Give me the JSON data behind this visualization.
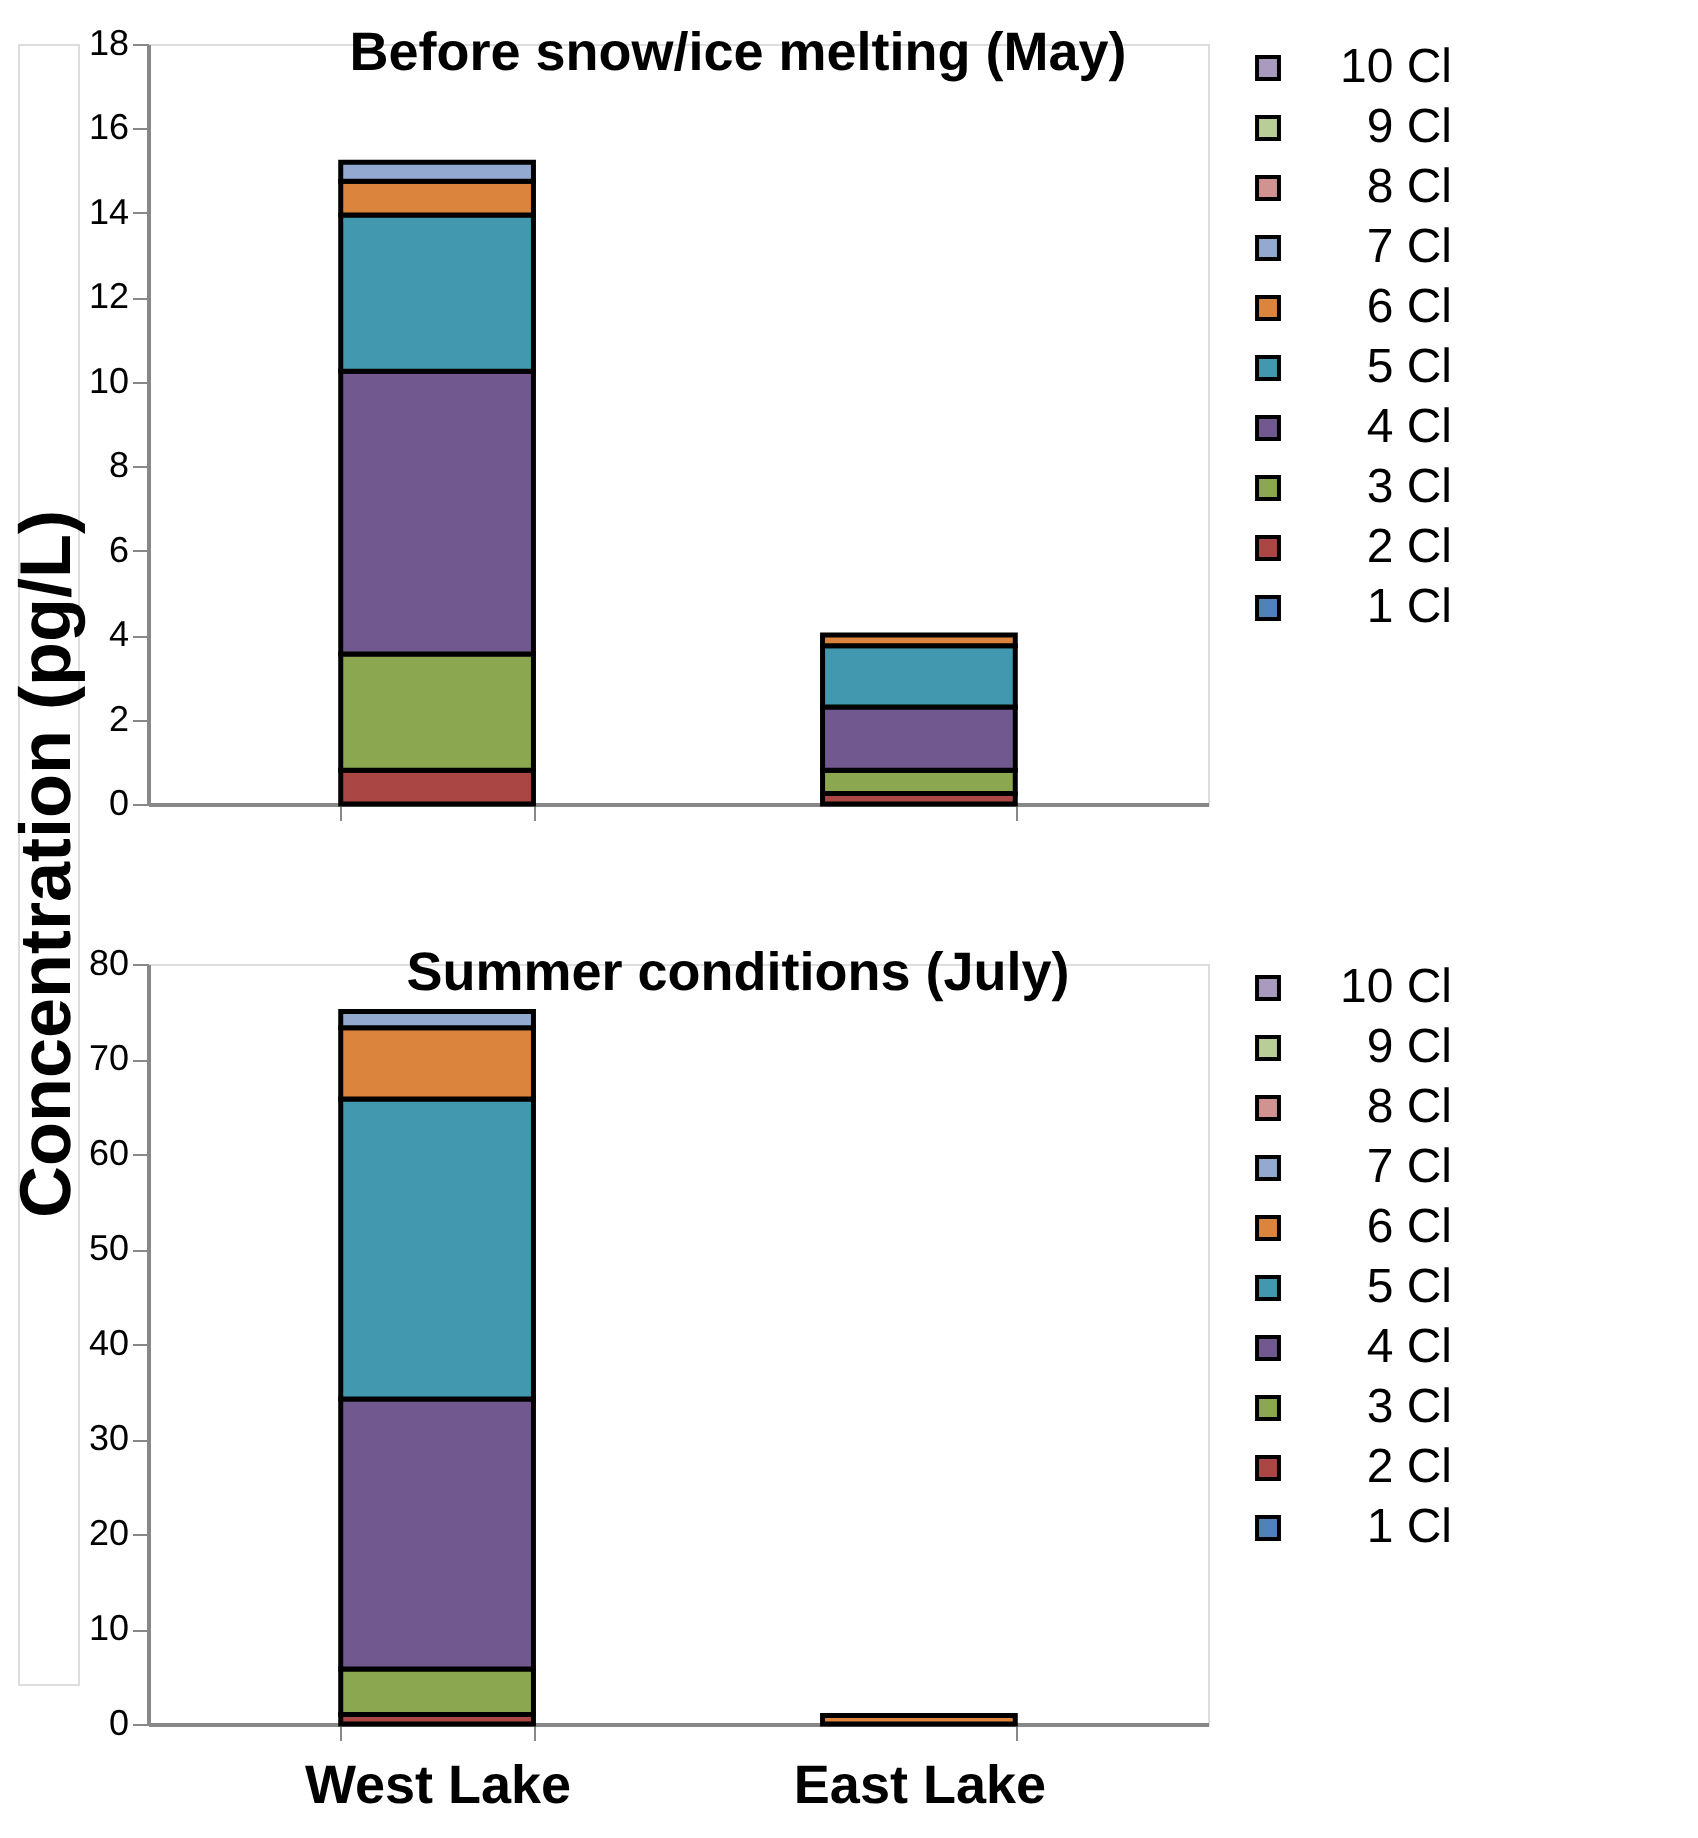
{
  "chart_data": [
    {
      "type": "bar",
      "stacked": true,
      "title": "Before snow/ice melting (May)",
      "ylabel": "Concentration (pg/L)",
      "categories": [
        null,
        null
      ],
      "ylim": [
        0,
        18
      ],
      "yticks": [
        0,
        2,
        4,
        6,
        8,
        10,
        12,
        14,
        16,
        18
      ],
      "tick_labels": "y",
      "grid": false,
      "legend": "right",
      "series": [
        {
          "name": "1 Cl",
          "color": "#4f81bd",
          "values": [
            null,
            null
          ]
        },
        {
          "name": "2 Cl",
          "color": "#aa4644",
          "values": [
            0.8,
            0.25
          ]
        },
        {
          "name": "3 Cl",
          "color": "#8ba74f",
          "values": [
            2.75,
            0.55
          ]
        },
        {
          "name": "4 Cl",
          "color": "#71588f",
          "values": [
            6.7,
            1.5
          ]
        },
        {
          "name": "5 Cl",
          "color": "#4298af",
          "values": [
            3.7,
            1.45
          ]
        },
        {
          "name": "6 Cl",
          "color": "#db843d",
          "values": [
            0.8,
            0.25
          ]
        },
        {
          "name": "7 Cl",
          "color": "#93a9cf",
          "values": [
            0.45,
            null
          ]
        },
        {
          "name": "8 Cl",
          "color": "#d19392",
          "values": [
            null,
            null
          ]
        },
        {
          "name": "9 Cl",
          "color": "#b9cd96",
          "values": [
            null,
            null
          ]
        },
        {
          "name": "10 Cl",
          "color": "#a99bbd",
          "values": [
            null,
            null
          ]
        }
      ]
    },
    {
      "type": "bar",
      "stacked": true,
      "title": "Summer conditions (July)",
      "categories": [
        "West Lake",
        "East Lake"
      ],
      "ylim": [
        0,
        80
      ],
      "yticks": [
        0,
        10,
        20,
        30,
        40,
        50,
        60,
        70,
        80
      ],
      "grid": false,
      "legend": "right",
      "series": [
        {
          "name": "1 Cl",
          "color": "#4f81bd",
          "values": [
            null,
            null
          ]
        },
        {
          "name": "2 Cl",
          "color": "#aa4644",
          "values": [
            1.0,
            null
          ]
        },
        {
          "name": "3 Cl",
          "color": "#8ba74f",
          "values": [
            4.8,
            null
          ]
        },
        {
          "name": "4 Cl",
          "color": "#71588f",
          "values": [
            28.4,
            null
          ]
        },
        {
          "name": "5 Cl",
          "color": "#4298af",
          "values": [
            31.6,
            null
          ]
        },
        {
          "name": "6 Cl",
          "color": "#db843d",
          "values": [
            7.5,
            0.9
          ]
        },
        {
          "name": "7 Cl",
          "color": "#93a9cf",
          "values": [
            1.7,
            null
          ]
        },
        {
          "name": "8 Cl",
          "color": "#d19392",
          "values": [
            null,
            null
          ]
        },
        {
          "name": "9 Cl",
          "color": "#b9cd96",
          "values": [
            null,
            null
          ]
        },
        {
          "name": "10 Cl",
          "color": "#a99bbd",
          "values": [
            null,
            null
          ]
        }
      ]
    }
  ]
}
